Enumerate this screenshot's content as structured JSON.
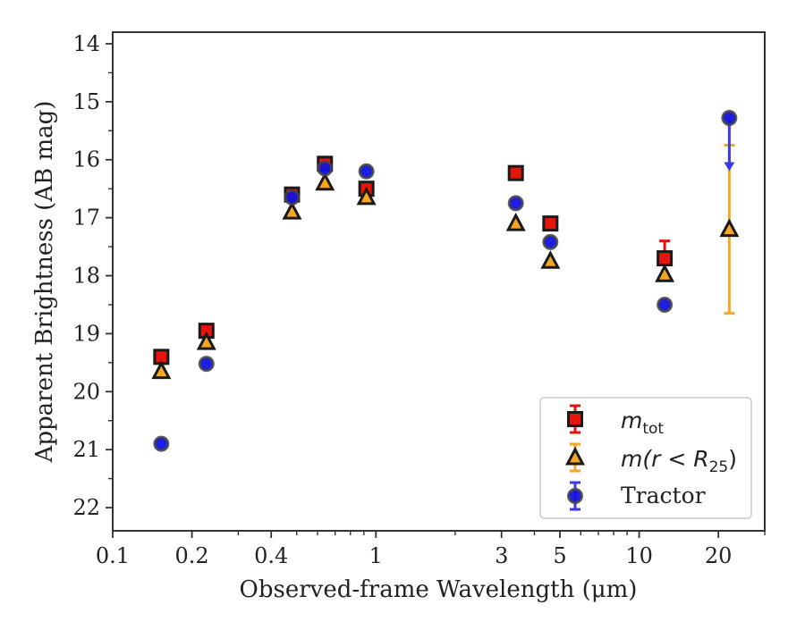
{
  "chart_data": {
    "type": "scatter",
    "xlabel": "Observed-frame Wavelength (μm)",
    "ylabel": "Apparent Brightness (AB mag)",
    "xscale": "log",
    "xlim": [
      0.1,
      30
    ],
    "ylim": [
      22.4,
      13.8
    ],
    "y_inverted": true,
    "xticks": [
      0.1,
      0.2,
      0.4,
      1,
      3,
      5,
      10,
      20
    ],
    "xtick_labels": [
      "0.1",
      "0.2",
      "0.4",
      "1",
      "3",
      "5",
      "10",
      "20"
    ],
    "yticks": [
      14,
      15,
      16,
      17,
      18,
      19,
      20,
      21,
      22
    ],
    "ytick_labels": [
      "14",
      "15",
      "16",
      "17",
      "18",
      "19",
      "20",
      "21",
      "22"
    ],
    "legend_position": "lower-right",
    "grid": false,
    "series": [
      {
        "name": "m_tot",
        "label_main": "m",
        "label_sub": "tot",
        "marker": "square",
        "color": "#e8140c",
        "errcolor": "#e8140c",
        "points": [
          {
            "x": 0.153,
            "y": 19.4
          },
          {
            "x": 0.227,
            "y": 18.95
          },
          {
            "x": 0.48,
            "y": 16.6
          },
          {
            "x": 0.64,
            "y": 16.07
          },
          {
            "x": 0.92,
            "y": 16.5
          },
          {
            "x": 3.4,
            "y": 16.23
          },
          {
            "x": 4.6,
            "y": 17.1
          },
          {
            "x": 12.5,
            "y": 17.7,
            "yerr": [
              0.3,
              0.3
            ]
          }
        ]
      },
      {
        "name": "m(r<R25)",
        "label_main": "m(r < R",
        "label_sub": "25",
        "label_end": ")",
        "marker": "triangle",
        "color": "#f5a623",
        "errcolor": "#f5a623",
        "points": [
          {
            "x": 0.153,
            "y": 19.65
          },
          {
            "x": 0.227,
            "y": 19.15
          },
          {
            "x": 0.48,
            "y": 16.9
          },
          {
            "x": 0.64,
            "y": 16.4
          },
          {
            "x": 0.92,
            "y": 16.65
          },
          {
            "x": 3.4,
            "y": 17.1
          },
          {
            "x": 4.6,
            "y": 17.75
          },
          {
            "x": 12.5,
            "y": 17.98
          },
          {
            "x": 22,
            "y": 17.2,
            "yerr": [
              1.45,
              1.45
            ]
          }
        ]
      },
      {
        "name": "Tractor",
        "marker": "circle",
        "color": "#1212e0",
        "errcolor": "#3a3ae8",
        "points": [
          {
            "x": 0.153,
            "y": 20.9
          },
          {
            "x": 0.227,
            "y": 19.52
          },
          {
            "x": 0.48,
            "y": 16.65
          },
          {
            "x": 0.64,
            "y": 16.15
          },
          {
            "x": 0.92,
            "y": 16.2
          },
          {
            "x": 3.4,
            "y": 16.75
          },
          {
            "x": 4.6,
            "y": 17.42
          },
          {
            "x": 12.5,
            "y": 18.5
          },
          {
            "x": 22,
            "y": 15.28,
            "upper_limit_to": 16.15
          }
        ]
      }
    ]
  }
}
